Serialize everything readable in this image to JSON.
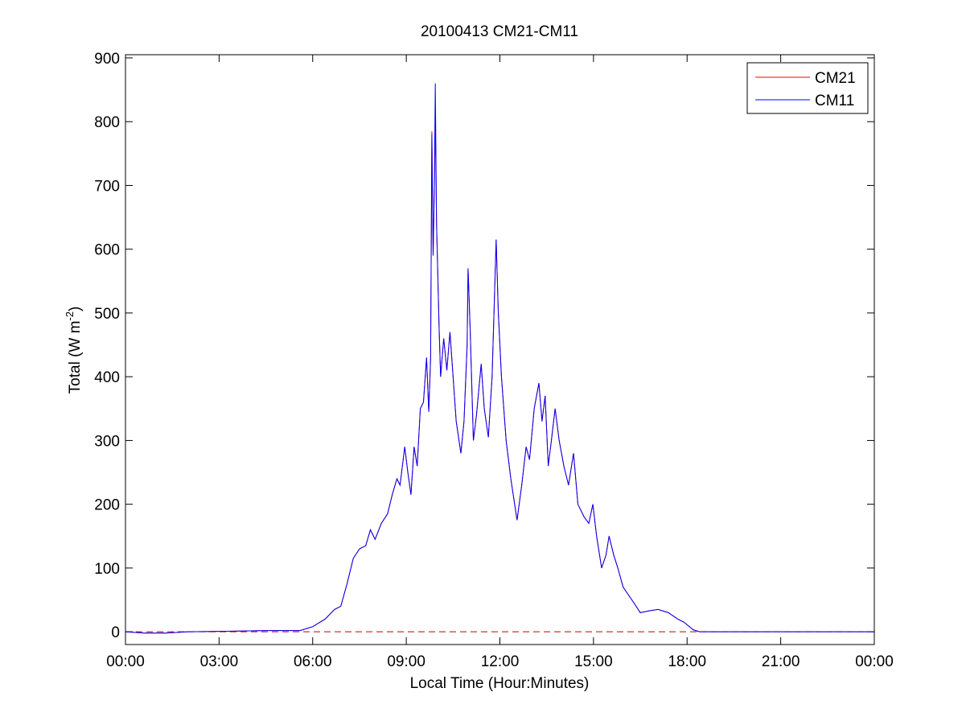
{
  "chart_data": {
    "type": "line",
    "title": "20100413 CM21-CM11",
    "xlabel": "Local Time (Hour:Minutes)",
    "ylabel": {
      "text": "Total (W m",
      "sup": "-2",
      "end": ")"
    },
    "x": [
      0,
      0.6,
      1.3,
      2,
      3.5,
      4.5,
      5.6,
      6.0,
      6.4,
      6.7,
      6.9,
      7.1,
      7.3,
      7.5,
      7.7,
      7.85,
      8.0,
      8.2,
      8.4,
      8.55,
      8.7,
      8.8,
      8.95,
      9.05,
      9.15,
      9.25,
      9.35,
      9.45,
      9.55,
      9.65,
      9.72,
      9.78,
      9.82,
      9.86,
      9.9,
      9.93,
      9.97,
      10.05,
      10.1,
      10.2,
      10.3,
      10.4,
      10.5,
      10.6,
      10.75,
      10.85,
      10.95,
      10.98,
      11.05,
      11.15,
      11.25,
      11.4,
      11.5,
      11.63,
      11.75,
      11.88,
      11.95,
      12.05,
      12.2,
      12.35,
      12.55,
      12.7,
      12.84,
      12.95,
      13.1,
      13.25,
      13.35,
      13.45,
      13.55,
      13.65,
      13.77,
      13.9,
      14.05,
      14.2,
      14.36,
      14.5,
      14.7,
      14.85,
      14.98,
      15.1,
      15.26,
      15.4,
      15.5,
      15.65,
      15.78,
      15.95,
      16.09,
      16.3,
      16.5,
      16.8,
      17.07,
      17.4,
      17.7,
      17.9,
      18.2,
      18.4,
      24
    ],
    "series": [
      {
        "name": "CM21",
        "color": "#ff0000",
        "values": [
          0,
          -2,
          -2,
          0,
          1,
          2,
          2,
          8,
          20,
          35,
          40,
          75,
          115,
          130,
          135,
          160,
          145,
          170,
          185,
          215,
          240,
          230,
          290,
          250,
          215,
          290,
          260,
          350,
          360,
          430,
          345,
          430,
          785,
          590,
          700,
          800,
          640,
          480,
          400,
          460,
          410,
          470,
          400,
          330,
          280,
          330,
          450,
          570,
          470,
          300,
          340,
          420,
          350,
          305,
          400,
          615,
          500,
          400,
          300,
          240,
          175,
          230,
          290,
          270,
          350,
          390,
          330,
          370,
          260,
          300,
          350,
          300,
          260,
          230,
          280,
          200,
          180,
          170,
          200,
          150,
          100,
          120,
          150,
          120,
          100,
          70,
          60,
          45,
          30,
          33,
          35,
          30,
          20,
          15,
          3,
          0,
          0
        ]
      },
      {
        "name": "CM11",
        "color": "#0000ff",
        "values": [
          0,
          -2,
          -2,
          0,
          1,
          2,
          2,
          8,
          20,
          35,
          40,
          75,
          115,
          130,
          135,
          160,
          145,
          170,
          185,
          215,
          240,
          230,
          290,
          250,
          215,
          290,
          260,
          350,
          360,
          430,
          345,
          430,
          780,
          590,
          700,
          860,
          640,
          480,
          400,
          460,
          410,
          470,
          400,
          330,
          280,
          330,
          450,
          570,
          470,
          300,
          340,
          420,
          350,
          305,
          400,
          615,
          500,
          400,
          300,
          240,
          175,
          230,
          290,
          270,
          350,
          390,
          330,
          370,
          260,
          300,
          350,
          300,
          260,
          230,
          280,
          200,
          180,
          170,
          200,
          150,
          100,
          120,
          150,
          120,
          100,
          70,
          60,
          45,
          30,
          33,
          35,
          30,
          20,
          15,
          3,
          0,
          0
        ]
      }
    ],
    "reference_line": {
      "value": 0,
      "color": "#c00000",
      "dashed": true
    },
    "xlim": [
      0,
      24
    ],
    "xticks": [
      {
        "value": 0,
        "label": "00:00"
      },
      {
        "value": 3,
        "label": "03:00"
      },
      {
        "value": 6,
        "label": "06:00"
      },
      {
        "value": 9,
        "label": "09:00"
      },
      {
        "value": 12,
        "label": "12:00"
      },
      {
        "value": 15,
        "label": "15:00"
      },
      {
        "value": 18,
        "label": "18:00"
      },
      {
        "value": 21,
        "label": "21:00"
      },
      {
        "value": 24,
        "label": "00:00"
      }
    ],
    "ylim": [
      -20,
      905
    ],
    "yticks": [
      0,
      100,
      200,
      300,
      400,
      500,
      600,
      700,
      800,
      900
    ],
    "grid": false,
    "legend": "top-right"
  }
}
